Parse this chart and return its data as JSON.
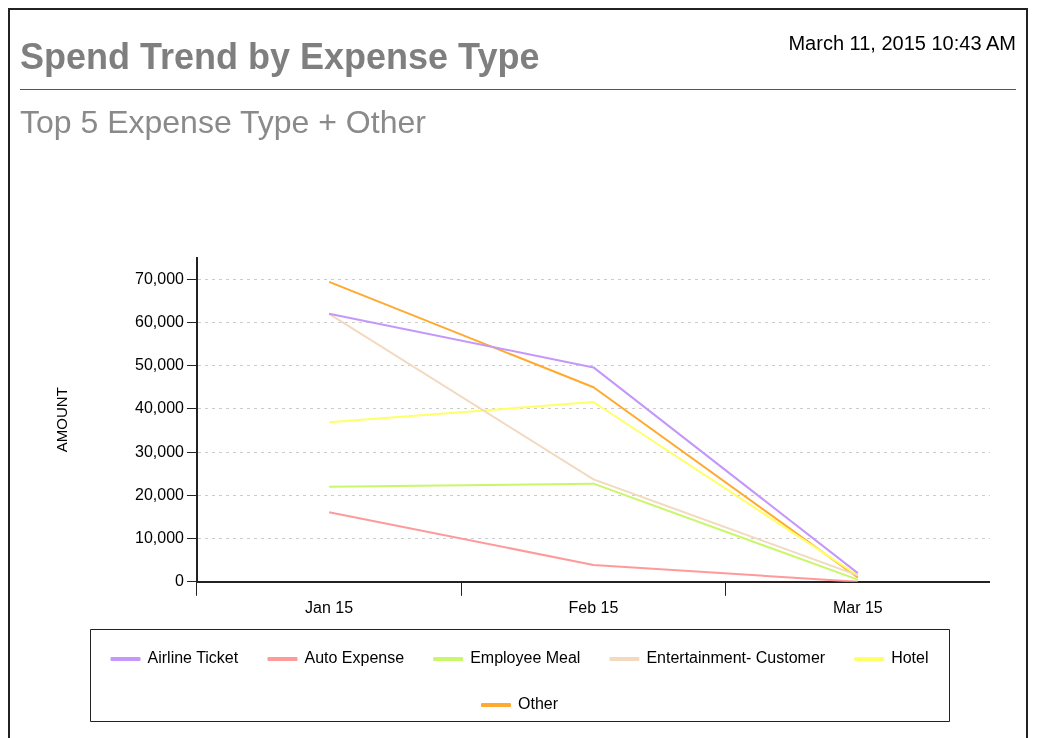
{
  "chart_data": {
    "type": "line",
    "title": "Spend Trend by Expense Type",
    "subtitle": "Top 5 Expense Type + Other",
    "ylabel": "AMOUNT",
    "annotations": [
      "March 11, 2015  10:43 AM"
    ],
    "categories": [
      "Jan 15",
      "Feb 15",
      "Mar 15"
    ],
    "series": [
      {
        "name": "Airline Ticket",
        "color": "#c497fa",
        "values": [
          62000,
          49600,
          2000
        ]
      },
      {
        "name": "Auto Expense",
        "color": "#ff9a9a",
        "values": [
          16100,
          3900,
          0
        ]
      },
      {
        "name": "Employee Meal",
        "color": "#c8f76a",
        "values": [
          22000,
          22700,
          500
        ]
      },
      {
        "name": "Entertainment- Customer",
        "color": "#f2d9c0",
        "values": [
          62000,
          23700,
          1500
        ]
      },
      {
        "name": "Hotel",
        "color": "#ffff66",
        "values": [
          36900,
          41600,
          1500
        ]
      },
      {
        "name": "Other",
        "color": "#ffa92e",
        "values": [
          69400,
          45000,
          1000
        ]
      }
    ],
    "ylim": [
      0,
      75000
    ],
    "yticks": [
      {
        "value": 0,
        "label": "0"
      },
      {
        "value": 10000,
        "label": "10,000"
      },
      {
        "value": 20000,
        "label": "20,000"
      },
      {
        "value": 30000,
        "label": "30,000"
      },
      {
        "value": 40000,
        "label": "40,000"
      },
      {
        "value": 50000,
        "label": "50,000"
      },
      {
        "value": 60000,
        "label": "60,000"
      },
      {
        "value": 70000,
        "label": "70,000"
      }
    ],
    "grid": "y",
    "legend": "bottom",
    "marker": "none",
    "line_style": "solid"
  }
}
